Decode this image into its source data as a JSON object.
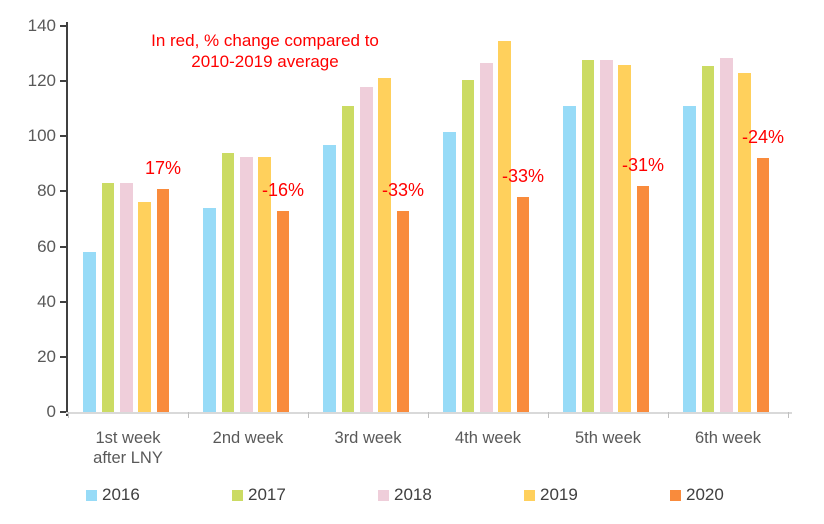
{
  "chart_data": {
    "type": "bar",
    "title": "",
    "note": {
      "line1": "In red, % change compared to",
      "line2": "2010-2019 average",
      "color": "#ff0000"
    },
    "categories": [
      "1st week\nafter LNY",
      "2nd week",
      "3rd week",
      "4th week",
      "5th week",
      "6th week"
    ],
    "series": [
      {
        "name": "2016",
        "color": "#97dbf7",
        "values": [
          58,
          74,
          97,
          101.5,
          111,
          111
        ]
      },
      {
        "name": "2017",
        "color": "#cbdb63",
        "values": [
          83,
          94,
          111,
          120.5,
          127.5,
          125.5
        ]
      },
      {
        "name": "2018",
        "color": "#efceda",
        "values": [
          83,
          92.5,
          118,
          126.5,
          127.5,
          128.5
        ]
      },
      {
        "name": "2019",
        "color": "#ffd05c",
        "values": [
          76,
          92.5,
          121,
          134.5,
          126,
          123
        ]
      },
      {
        "name": "2020",
        "color": "#f98b3c",
        "values": [
          81,
          73,
          73,
          78,
          82,
          92
        ]
      }
    ],
    "annotations": {
      "attached_to_series": "2020",
      "color": "#ff0000",
      "labels": [
        "17%",
        "-16%",
        "-33%",
        "-33%",
        "-31%",
        "-24%"
      ]
    },
    "y_axis": {
      "min": 0,
      "max": 140,
      "step": 20,
      "ticks": [
        0,
        20,
        40,
        60,
        80,
        100,
        120,
        140
      ]
    },
    "x_axis_label_color": "#595959",
    "grid": false,
    "legend_position": "bottom",
    "legend_entries": [
      "2016",
      "2017",
      "2018",
      "2019",
      "2020"
    ]
  }
}
